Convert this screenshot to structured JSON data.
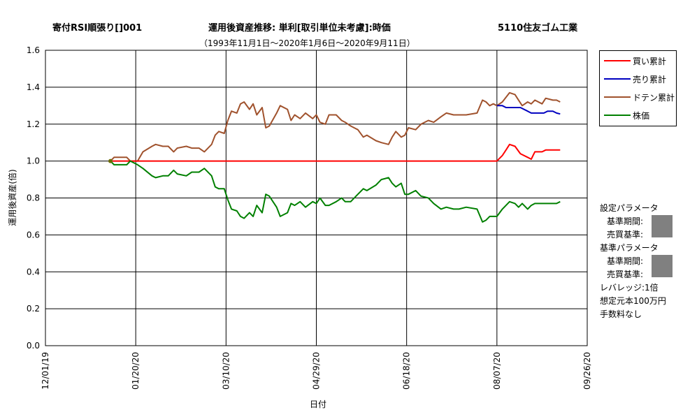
{
  "header": {
    "left_title": "寄付RSI順張り[]001",
    "center_title": "運用後資産推移: 単利[取引単位未考慮]:時価",
    "subtitle": "（1993年11月1日～2020年1月6日～2020年9月11日）",
    "right_title": "5110住友ゴム工業"
  },
  "legend": {
    "items": [
      {
        "label": "買い累計",
        "color": "#ff0000"
      },
      {
        "label": "売り累計",
        "color": "#0000c0"
      },
      {
        "label": "ドテン累計",
        "color": "#a0522d"
      },
      {
        "label": "株価",
        "color": "#008000"
      }
    ]
  },
  "params": {
    "setting_title": "設定パラメータ",
    "period_label": "基準期間:",
    "threshold_label": "売買基準:",
    "base_title": "基準パラメータ",
    "base_period_label": "基準期間:",
    "base_threshold_label": "売買基準:",
    "leverage": "レバレッジ:1倍",
    "capital": "想定元本100万円",
    "commission": "手数料なし"
  },
  "chart_data": {
    "type": "line",
    "xlabel": "日付",
    "ylabel": "運用後資産(倍)",
    "x_ticks": [
      "12/01/19",
      "01/20/20",
      "03/10/20",
      "04/29/20",
      "06/18/20",
      "08/07/20",
      "09/26/20"
    ],
    "x_range": [
      "2019-12-01",
      "2020-09-26"
    ],
    "ylim": [
      0,
      1.6
    ],
    "y_ticks": [
      "0.0",
      "0.2",
      "0.4",
      "0.6",
      "0.8",
      "1.0",
      "1.2",
      "1.4",
      "1.6"
    ],
    "grid": true,
    "series": [
      {
        "name": "ドテン累計",
        "color": "#a0522d",
        "points": [
          [
            "2020-01-06",
            1.0
          ],
          [
            "2020-01-08",
            1.02
          ],
          [
            "2020-01-15",
            1.02
          ],
          [
            "2020-01-17",
            1.0
          ],
          [
            "2020-01-21",
            1.0
          ],
          [
            "2020-01-24",
            1.05
          ],
          [
            "2020-01-29",
            1.08
          ],
          [
            "2020-01-31",
            1.09
          ],
          [
            "2020-02-04",
            1.08
          ],
          [
            "2020-02-07",
            1.08
          ],
          [
            "2020-02-10",
            1.05
          ],
          [
            "2020-02-12",
            1.07
          ],
          [
            "2020-02-17",
            1.08
          ],
          [
            "2020-02-20",
            1.07
          ],
          [
            "2020-02-24",
            1.07
          ],
          [
            "2020-02-27",
            1.05
          ],
          [
            "2020-03-02",
            1.09
          ],
          [
            "2020-03-04",
            1.14
          ],
          [
            "2020-03-06",
            1.16
          ],
          [
            "2020-03-09",
            1.15
          ],
          [
            "2020-03-11",
            1.22
          ],
          [
            "2020-03-13",
            1.27
          ],
          [
            "2020-03-16",
            1.26
          ],
          [
            "2020-03-18",
            1.31
          ],
          [
            "2020-03-20",
            1.32
          ],
          [
            "2020-03-23",
            1.28
          ],
          [
            "2020-03-25",
            1.31
          ],
          [
            "2020-03-27",
            1.25
          ],
          [
            "2020-03-30",
            1.29
          ],
          [
            "2020-04-01",
            1.18
          ],
          [
            "2020-04-03",
            1.19
          ],
          [
            "2020-04-07",
            1.26
          ],
          [
            "2020-04-09",
            1.3
          ],
          [
            "2020-04-13",
            1.28
          ],
          [
            "2020-04-15",
            1.22
          ],
          [
            "2020-04-17",
            1.25
          ],
          [
            "2020-04-20",
            1.23
          ],
          [
            "2020-04-23",
            1.26
          ],
          [
            "2020-04-27",
            1.23
          ],
          [
            "2020-04-29",
            1.25
          ],
          [
            "2020-05-01",
            1.21
          ],
          [
            "2020-05-04",
            1.2
          ],
          [
            "2020-05-06",
            1.25
          ],
          [
            "2020-05-10",
            1.25
          ],
          [
            "2020-05-13",
            1.22
          ],
          [
            "2020-05-15",
            1.21
          ],
          [
            "2020-05-18",
            1.19
          ],
          [
            "2020-05-22",
            1.17
          ],
          [
            "2020-05-25",
            1.13
          ],
          [
            "2020-05-27",
            1.14
          ],
          [
            "2020-06-01",
            1.11
          ],
          [
            "2020-06-04",
            1.1
          ],
          [
            "2020-06-08",
            1.09
          ],
          [
            "2020-06-10",
            1.13
          ],
          [
            "2020-06-12",
            1.16
          ],
          [
            "2020-06-15",
            1.13
          ],
          [
            "2020-06-17",
            1.14
          ],
          [
            "2020-06-19",
            1.18
          ],
          [
            "2020-06-23",
            1.17
          ],
          [
            "2020-06-26",
            1.2
          ],
          [
            "2020-06-30",
            1.22
          ],
          [
            "2020-07-03",
            1.21
          ],
          [
            "2020-07-07",
            1.24
          ],
          [
            "2020-07-10",
            1.26
          ],
          [
            "2020-07-14",
            1.25
          ],
          [
            "2020-07-17",
            1.25
          ],
          [
            "2020-07-21",
            1.25
          ],
          [
            "2020-07-27",
            1.26
          ],
          [
            "2020-07-30",
            1.33
          ],
          [
            "2020-08-01",
            1.32
          ],
          [
            "2020-08-03",
            1.3
          ],
          [
            "2020-08-05",
            1.31
          ],
          [
            "2020-08-07",
            1.3
          ],
          [
            "2020-08-10",
            1.32
          ],
          [
            "2020-08-14",
            1.37
          ],
          [
            "2020-08-17",
            1.36
          ],
          [
            "2020-08-19",
            1.33
          ],
          [
            "2020-08-21",
            1.3
          ],
          [
            "2020-08-24",
            1.32
          ],
          [
            "2020-08-26",
            1.31
          ],
          [
            "2020-08-28",
            1.33
          ],
          [
            "2020-09-01",
            1.31
          ],
          [
            "2020-09-03",
            1.34
          ],
          [
            "2020-09-07",
            1.33
          ],
          [
            "2020-09-09",
            1.33
          ],
          [
            "2020-09-11",
            1.32
          ]
        ]
      },
      {
        "name": "売り累計",
        "color": "#0000c0",
        "points": [
          [
            "2020-08-07",
            1.3
          ],
          [
            "2020-08-10",
            1.3
          ],
          [
            "2020-08-12",
            1.29
          ],
          [
            "2020-08-20",
            1.29
          ],
          [
            "2020-08-24",
            1.27
          ],
          [
            "2020-08-26",
            1.26
          ],
          [
            "2020-08-28",
            1.26
          ],
          [
            "2020-09-02",
            1.26
          ],
          [
            "2020-09-04",
            1.27
          ],
          [
            "2020-09-07",
            1.27
          ],
          [
            "2020-09-09",
            1.26
          ],
          [
            "2020-09-11",
            1.255
          ]
        ]
      },
      {
        "name": "買い累計",
        "color": "#ff0000",
        "points": [
          [
            "2020-01-06",
            1.0
          ],
          [
            "2020-08-07",
            1.0
          ],
          [
            "2020-08-10",
            1.03
          ],
          [
            "2020-08-12",
            1.06
          ],
          [
            "2020-08-14",
            1.09
          ],
          [
            "2020-08-17",
            1.08
          ],
          [
            "2020-08-20",
            1.04
          ],
          [
            "2020-08-24",
            1.02
          ],
          [
            "2020-08-26",
            1.01
          ],
          [
            "2020-08-28",
            1.05
          ],
          [
            "2020-09-01",
            1.05
          ],
          [
            "2020-09-03",
            1.06
          ],
          [
            "2020-09-07",
            1.06
          ],
          [
            "2020-09-11",
            1.06
          ]
        ]
      },
      {
        "name": "株価",
        "color": "#008000",
        "points": [
          [
            "2020-01-06",
            1.0
          ],
          [
            "2020-01-08",
            0.98
          ],
          [
            "2020-01-15",
            0.98
          ],
          [
            "2020-01-17",
            1.0
          ],
          [
            "2020-01-21",
            0.98
          ],
          [
            "2020-01-24",
            0.96
          ],
          [
            "2020-01-29",
            0.92
          ],
          [
            "2020-01-31",
            0.91
          ],
          [
            "2020-02-04",
            0.92
          ],
          [
            "2020-02-07",
            0.92
          ],
          [
            "2020-02-10",
            0.95
          ],
          [
            "2020-02-12",
            0.93
          ],
          [
            "2020-02-17",
            0.92
          ],
          [
            "2020-02-20",
            0.94
          ],
          [
            "2020-02-24",
            0.94
          ],
          [
            "2020-02-27",
            0.96
          ],
          [
            "2020-03-02",
            0.92
          ],
          [
            "2020-03-04",
            0.86
          ],
          [
            "2020-03-06",
            0.85
          ],
          [
            "2020-03-09",
            0.85
          ],
          [
            "2020-03-11",
            0.79
          ],
          [
            "2020-03-13",
            0.74
          ],
          [
            "2020-03-16",
            0.73
          ],
          [
            "2020-03-18",
            0.7
          ],
          [
            "2020-03-20",
            0.69
          ],
          [
            "2020-03-23",
            0.72
          ],
          [
            "2020-03-25",
            0.7
          ],
          [
            "2020-03-27",
            0.76
          ],
          [
            "2020-03-30",
            0.72
          ],
          [
            "2020-04-01",
            0.82
          ],
          [
            "2020-04-03",
            0.81
          ],
          [
            "2020-04-07",
            0.75
          ],
          [
            "2020-04-09",
            0.7
          ],
          [
            "2020-04-13",
            0.72
          ],
          [
            "2020-04-15",
            0.77
          ],
          [
            "2020-04-17",
            0.76
          ],
          [
            "2020-04-20",
            0.78
          ],
          [
            "2020-04-23",
            0.75
          ],
          [
            "2020-04-27",
            0.78
          ],
          [
            "2020-04-29",
            0.77
          ],
          [
            "2020-05-01",
            0.8
          ],
          [
            "2020-05-04",
            0.76
          ],
          [
            "2020-05-06",
            0.76
          ],
          [
            "2020-05-10",
            0.78
          ],
          [
            "2020-05-13",
            0.8
          ],
          [
            "2020-05-15",
            0.78
          ],
          [
            "2020-05-18",
            0.78
          ],
          [
            "2020-05-22",
            0.82
          ],
          [
            "2020-05-25",
            0.85
          ],
          [
            "2020-05-27",
            0.84
          ],
          [
            "2020-06-01",
            0.87
          ],
          [
            "2020-06-04",
            0.9
          ],
          [
            "2020-06-08",
            0.91
          ],
          [
            "2020-06-10",
            0.88
          ],
          [
            "2020-06-12",
            0.86
          ],
          [
            "2020-06-15",
            0.88
          ],
          [
            "2020-06-17",
            0.82
          ],
          [
            "2020-06-19",
            0.82
          ],
          [
            "2020-06-23",
            0.84
          ],
          [
            "2020-06-26",
            0.81
          ],
          [
            "2020-06-30",
            0.8
          ],
          [
            "2020-07-03",
            0.77
          ],
          [
            "2020-07-07",
            0.74
          ],
          [
            "2020-07-10",
            0.75
          ],
          [
            "2020-07-14",
            0.74
          ],
          [
            "2020-07-17",
            0.74
          ],
          [
            "2020-07-21",
            0.75
          ],
          [
            "2020-07-27",
            0.74
          ],
          [
            "2020-07-30",
            0.67
          ],
          [
            "2020-08-01",
            0.68
          ],
          [
            "2020-08-03",
            0.7
          ],
          [
            "2020-08-05",
            0.7
          ],
          [
            "2020-08-07",
            0.7
          ],
          [
            "2020-08-10",
            0.74
          ],
          [
            "2020-08-14",
            0.78
          ],
          [
            "2020-08-17",
            0.77
          ],
          [
            "2020-08-19",
            0.75
          ],
          [
            "2020-08-21",
            0.77
          ],
          [
            "2020-08-24",
            0.74
          ],
          [
            "2020-08-26",
            0.76
          ],
          [
            "2020-08-28",
            0.77
          ],
          [
            "2020-09-01",
            0.77
          ],
          [
            "2020-09-03",
            0.77
          ],
          [
            "2020-09-07",
            0.77
          ],
          [
            "2020-09-09",
            0.77
          ],
          [
            "2020-09-11",
            0.78
          ]
        ]
      }
    ]
  }
}
